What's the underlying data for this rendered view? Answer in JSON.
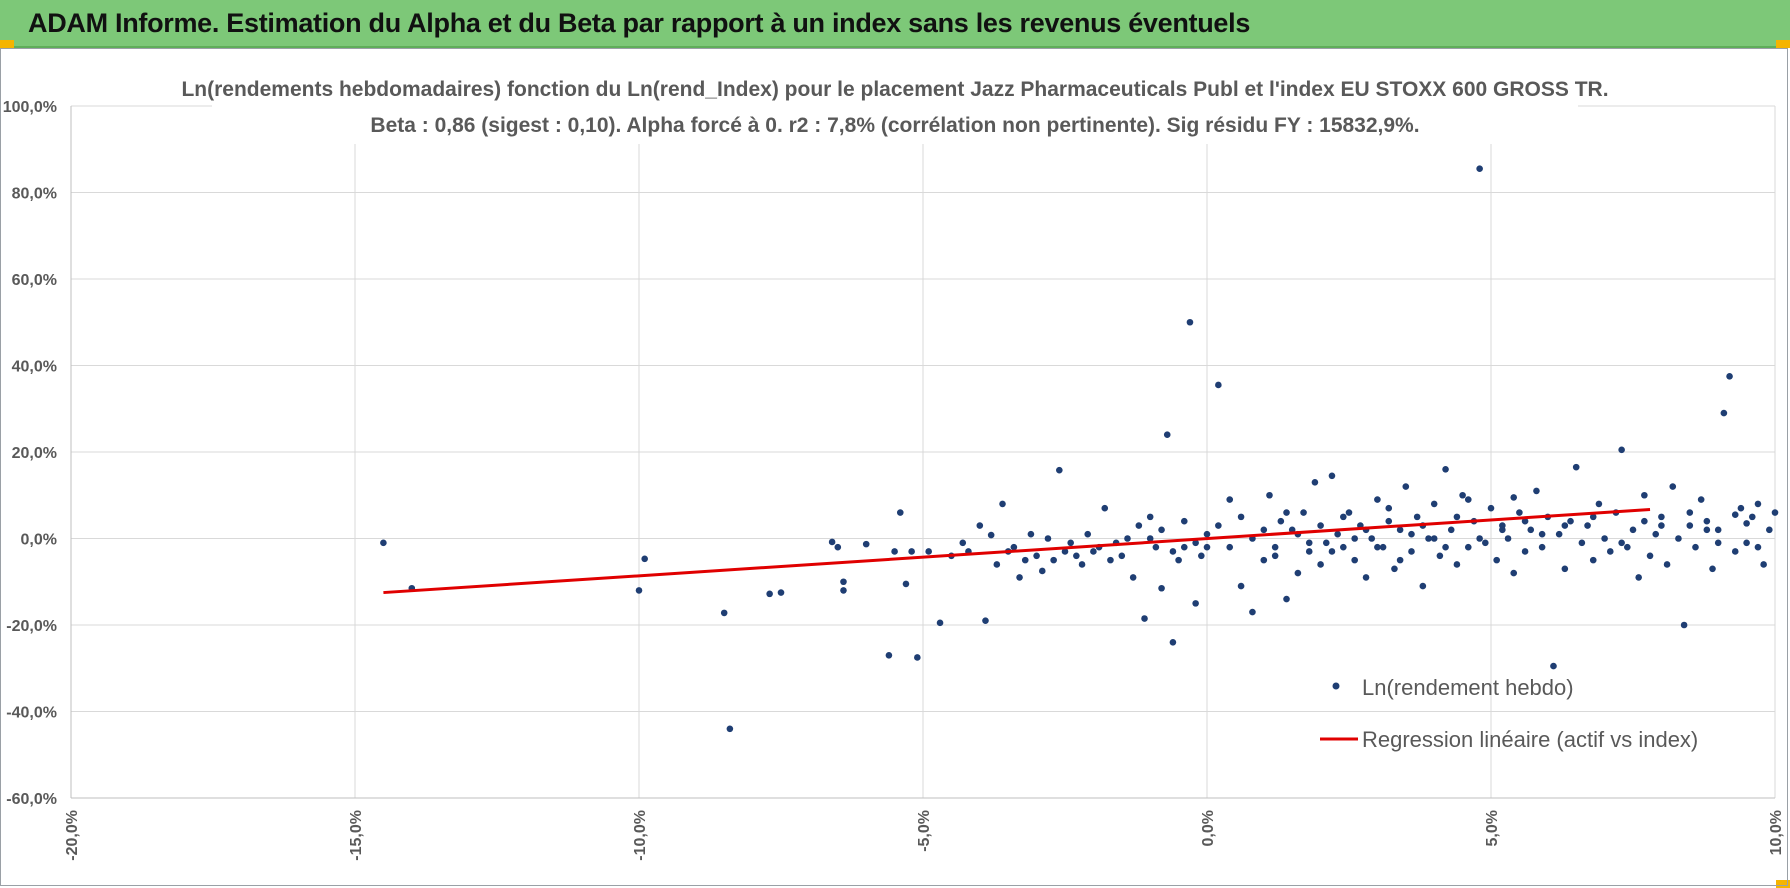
{
  "header": {
    "title": "ADAM Informe. Estimation du Alpha et du Beta par rapport à un index sans les revenus éventuels"
  },
  "colors": {
    "banner": "#7dc878",
    "points": "#1f3e73",
    "regression": "#e00000",
    "grid": "#d9d9d9"
  },
  "chart_data": {
    "type": "scatter",
    "title": "Ln(rendements hebdomadaires) fonction du Ln(rend_Index) pour le placement Jazz Pharmaceuticals Publ et l'index EU STOXX 600 GROSS TR.",
    "subtitle": "Beta : 0,86 (sigest : 0,10).  Alpha forcé à 0. r2 : 7,8% (corrélation non pertinente). Sig résidu FY : 15832,9%.",
    "xlabel": "",
    "ylabel": "",
    "xlim": [
      -0.2,
      0.1
    ],
    "ylim": [
      -0.6,
      1.0
    ],
    "x_ticks": [
      "-20,0%",
      "-15,0%",
      "-10,0%",
      "-5,0%",
      "0,0%",
      "5,0%",
      "10,0%"
    ],
    "y_ticks": [
      "100,0%",
      "80,0%",
      "60,0%",
      "40,0%",
      "20,0%",
      "0,0%",
      "-20,0%",
      "-40,0%",
      "-60,0%"
    ],
    "grid": true,
    "legend_position": "bottom-right",
    "series": [
      {
        "name": "Ln(rendement hebdo)",
        "type": "scatter",
        "points": [
          [
            -0.145,
            -0.01
          ],
          [
            -0.14,
            -0.115
          ],
          [
            -0.1,
            -0.12
          ],
          [
            -0.099,
            -0.047
          ],
          [
            -0.085,
            -0.172
          ],
          [
            -0.084,
            -0.44
          ],
          [
            -0.077,
            -0.128
          ],
          [
            -0.075,
            -0.125
          ],
          [
            -0.066,
            -0.008
          ],
          [
            -0.065,
            -0.02
          ],
          [
            -0.064,
            -0.1
          ],
          [
            -0.064,
            -0.12
          ],
          [
            -0.06,
            -0.013
          ],
          [
            -0.056,
            -0.27
          ],
          [
            -0.055,
            -0.03
          ],
          [
            -0.054,
            0.06
          ],
          [
            -0.053,
            -0.105
          ],
          [
            -0.052,
            -0.03
          ],
          [
            -0.051,
            -0.275
          ],
          [
            -0.049,
            -0.03
          ],
          [
            -0.047,
            -0.195
          ],
          [
            -0.045,
            -0.04
          ],
          [
            -0.043,
            -0.01
          ],
          [
            -0.042,
            -0.03
          ],
          [
            -0.04,
            0.03
          ],
          [
            -0.039,
            -0.19
          ],
          [
            -0.038,
            0.008
          ],
          [
            -0.037,
            -0.06
          ],
          [
            -0.036,
            0.08
          ],
          [
            -0.035,
            -0.03
          ],
          [
            -0.034,
            -0.02
          ],
          [
            -0.033,
            -0.09
          ],
          [
            -0.032,
            -0.05
          ],
          [
            -0.031,
            0.01
          ],
          [
            -0.03,
            -0.04
          ],
          [
            -0.029,
            -0.075
          ],
          [
            -0.028,
            0.0
          ],
          [
            -0.027,
            -0.05
          ],
          [
            -0.026,
            0.158
          ],
          [
            -0.025,
            -0.03
          ],
          [
            -0.024,
            -0.01
          ],
          [
            -0.023,
            -0.04
          ],
          [
            -0.022,
            -0.06
          ],
          [
            -0.021,
            0.01
          ],
          [
            -0.02,
            -0.03
          ],
          [
            -0.019,
            -0.02
          ],
          [
            -0.018,
            0.07
          ],
          [
            -0.017,
            -0.05
          ],
          [
            -0.016,
            -0.01
          ],
          [
            -0.015,
            -0.04
          ],
          [
            -0.014,
            0.0
          ],
          [
            -0.013,
            -0.09
          ],
          [
            -0.012,
            0.03
          ],
          [
            -0.011,
            -0.185
          ],
          [
            -0.01,
            0.05
          ],
          [
            -0.009,
            -0.02
          ],
          [
            -0.008,
            -0.115
          ],
          [
            -0.007,
            0.24
          ],
          [
            -0.006,
            -0.24
          ],
          [
            -0.005,
            -0.05
          ],
          [
            -0.004,
            -0.02
          ],
          [
            -0.003,
            0.5
          ],
          [
            -0.002,
            -0.15
          ],
          [
            -0.001,
            -0.04
          ],
          [
            0.0,
            -0.02
          ],
          [
            0.002,
            0.355
          ],
          [
            0.004,
            0.09
          ],
          [
            0.006,
            -0.11
          ],
          [
            0.008,
            -0.17
          ],
          [
            0.01,
            -0.05
          ],
          [
            0.011,
            0.1
          ],
          [
            0.012,
            -0.02
          ],
          [
            0.013,
            0.04
          ],
          [
            0.014,
            -0.14
          ],
          [
            0.015,
            0.02
          ],
          [
            0.016,
            -0.08
          ],
          [
            0.017,
            0.06
          ],
          [
            0.018,
            -0.03
          ],
          [
            0.019,
            0.13
          ],
          [
            0.02,
            -0.06
          ],
          [
            0.021,
            -0.01
          ],
          [
            0.022,
            0.145
          ],
          [
            0.023,
            0.01
          ],
          [
            0.024,
            -0.02
          ],
          [
            0.025,
            0.06
          ],
          [
            0.026,
            -0.05
          ],
          [
            0.027,
            0.03
          ],
          [
            0.028,
            -0.09
          ],
          [
            0.029,
            0.0
          ],
          [
            0.03,
            0.09
          ],
          [
            0.031,
            -0.02
          ],
          [
            0.032,
            0.04
          ],
          [
            0.033,
            -0.07
          ],
          [
            0.034,
            0.02
          ],
          [
            0.035,
            0.12
          ],
          [
            0.036,
            -0.03
          ],
          [
            0.037,
            0.05
          ],
          [
            0.038,
            -0.11
          ],
          [
            0.039,
            0.0
          ],
          [
            0.04,
            0.08
          ],
          [
            0.041,
            -0.04
          ],
          [
            0.042,
            0.16
          ],
          [
            0.043,
            0.02
          ],
          [
            0.044,
            -0.06
          ],
          [
            0.045,
            0.1
          ],
          [
            0.046,
            -0.02
          ],
          [
            0.047,
            0.04
          ],
          [
            0.048,
            0.855
          ],
          [
            0.049,
            -0.01
          ],
          [
            0.05,
            0.07
          ],
          [
            0.051,
            -0.05
          ],
          [
            0.052,
            0.03
          ],
          [
            0.053,
            0.0
          ],
          [
            0.054,
            -0.08
          ],
          [
            0.055,
            0.06
          ],
          [
            0.056,
            -0.03
          ],
          [
            0.057,
            0.02
          ],
          [
            0.058,
            0.11
          ],
          [
            0.059,
            -0.02
          ],
          [
            0.06,
            0.05
          ],
          [
            0.061,
            -0.295
          ],
          [
            0.062,
            0.01
          ],
          [
            0.063,
            -0.07
          ],
          [
            0.064,
            0.04
          ],
          [
            0.065,
            0.165
          ],
          [
            0.066,
            -0.01
          ],
          [
            0.067,
            0.03
          ],
          [
            0.068,
            -0.05
          ],
          [
            0.069,
            0.08
          ],
          [
            0.07,
            0.0
          ],
          [
            0.071,
            -0.03
          ],
          [
            0.072,
            0.06
          ],
          [
            0.073,
            0.205
          ],
          [
            0.074,
            -0.02
          ],
          [
            0.075,
            0.02
          ],
          [
            0.076,
            -0.09
          ],
          [
            0.077,
            0.1
          ],
          [
            0.078,
            -0.04
          ],
          [
            0.079,
            0.01
          ],
          [
            0.08,
            0.05
          ],
          [
            0.081,
            -0.06
          ],
          [
            0.082,
            0.12
          ],
          [
            0.083,
            0.0
          ],
          [
            0.084,
            -0.2
          ],
          [
            0.085,
            0.03
          ],
          [
            0.086,
            -0.02
          ],
          [
            0.087,
            0.09
          ],
          [
            0.088,
            0.04
          ],
          [
            0.089,
            -0.07
          ],
          [
            0.09,
            0.02
          ],
          [
            0.091,
            0.29
          ],
          [
            0.092,
            0.375
          ],
          [
            0.093,
            -0.03
          ],
          [
            0.094,
            0.07
          ],
          [
            0.095,
            -0.01
          ],
          [
            0.096,
            0.05
          ],
          [
            0.097,
            0.08
          ],
          [
            0.098,
            -0.06
          ],
          [
            0.099,
            0.02
          ],
          [
            0.1,
            0.06
          ],
          [
            -0.01,
            0.0
          ],
          [
            -0.008,
            0.02
          ],
          [
            -0.006,
            -0.03
          ],
          [
            -0.004,
            0.04
          ],
          [
            -0.002,
            -0.01
          ],
          [
            0.0,
            0.01
          ],
          [
            0.002,
            0.03
          ],
          [
            0.004,
            -0.02
          ],
          [
            0.006,
            0.05
          ],
          [
            0.008,
            0.0
          ],
          [
            0.01,
            0.02
          ],
          [
            0.012,
            -0.04
          ],
          [
            0.014,
            0.06
          ],
          [
            0.016,
            0.01
          ],
          [
            0.018,
            -0.01
          ],
          [
            0.02,
            0.03
          ],
          [
            0.022,
            -0.03
          ],
          [
            0.024,
            0.05
          ],
          [
            0.026,
            0.0
          ],
          [
            0.028,
            0.02
          ],
          [
            0.03,
            -0.02
          ],
          [
            0.032,
            0.07
          ],
          [
            0.034,
            -0.05
          ],
          [
            0.036,
            0.01
          ],
          [
            0.038,
            0.03
          ],
          [
            0.04,
            0.0
          ],
          [
            0.042,
            -0.02
          ],
          [
            0.044,
            0.05
          ],
          [
            0.046,
            0.09
          ],
          [
            0.048,
            0.0
          ],
          [
            0.052,
            0.02
          ],
          [
            0.054,
            0.095
          ],
          [
            0.056,
            0.04
          ],
          [
            0.059,
            0.01
          ],
          [
            0.063,
            0.03
          ],
          [
            0.068,
            0.05
          ],
          [
            0.073,
            -0.01
          ],
          [
            0.077,
            0.04
          ],
          [
            0.08,
            0.03
          ],
          [
            0.085,
            0.06
          ],
          [
            0.088,
            0.02
          ],
          [
            0.09,
            -0.01
          ],
          [
            0.093,
            0.055
          ],
          [
            0.095,
            0.035
          ],
          [
            0.097,
            -0.02
          ]
        ]
      },
      {
        "name": "Regression linéaire (actif vs index)",
        "type": "line",
        "points": [
          [
            -0.145,
            -0.125
          ],
          [
            0.078,
            0.067
          ]
        ]
      }
    ]
  }
}
